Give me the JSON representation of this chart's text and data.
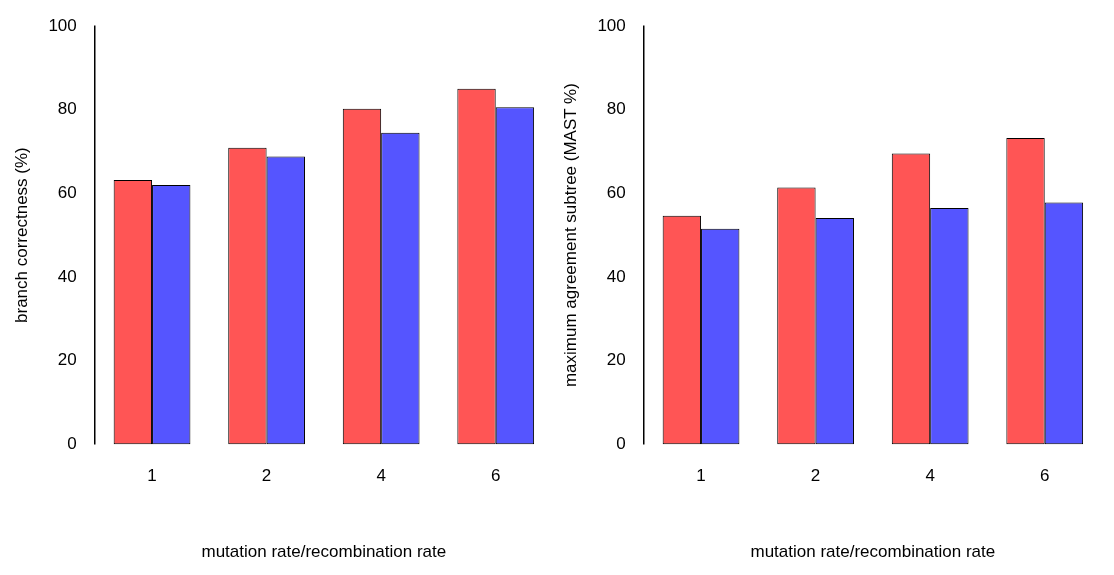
{
  "chart_data": [
    {
      "type": "bar",
      "xlabel": "mutation rate/recombination rate",
      "ylabel": "branch correctness (%)",
      "categories": [
        "1",
        "2",
        "4",
        "6"
      ],
      "series": [
        {
          "color": "#ff5555",
          "values": [
            63.2,
            70.9,
            80.2,
            85.0
          ]
        },
        {
          "color": "#5555ff",
          "values": [
            62.0,
            68.8,
            74.5,
            80.6
          ]
        }
      ],
      "ylim": [
        0,
        100
      ],
      "yticks": [
        0,
        20,
        40,
        60,
        80,
        100
      ],
      "grid": false
    },
    {
      "type": "bar",
      "xlabel": "mutation rate/recombination rate",
      "ylabel": "maximum agreement subtree (MAST %)",
      "categories": [
        "1",
        "2",
        "4",
        "6"
      ],
      "series": [
        {
          "color": "#ff5555",
          "values": [
            54.6,
            61.4,
            69.5,
            73.2
          ]
        },
        {
          "color": "#5555ff",
          "values": [
            51.5,
            54.1,
            56.5,
            57.8
          ]
        }
      ],
      "ylim": [
        0,
        100
      ],
      "yticks": [
        0,
        20,
        40,
        60,
        80,
        100
      ],
      "grid": false
    }
  ]
}
